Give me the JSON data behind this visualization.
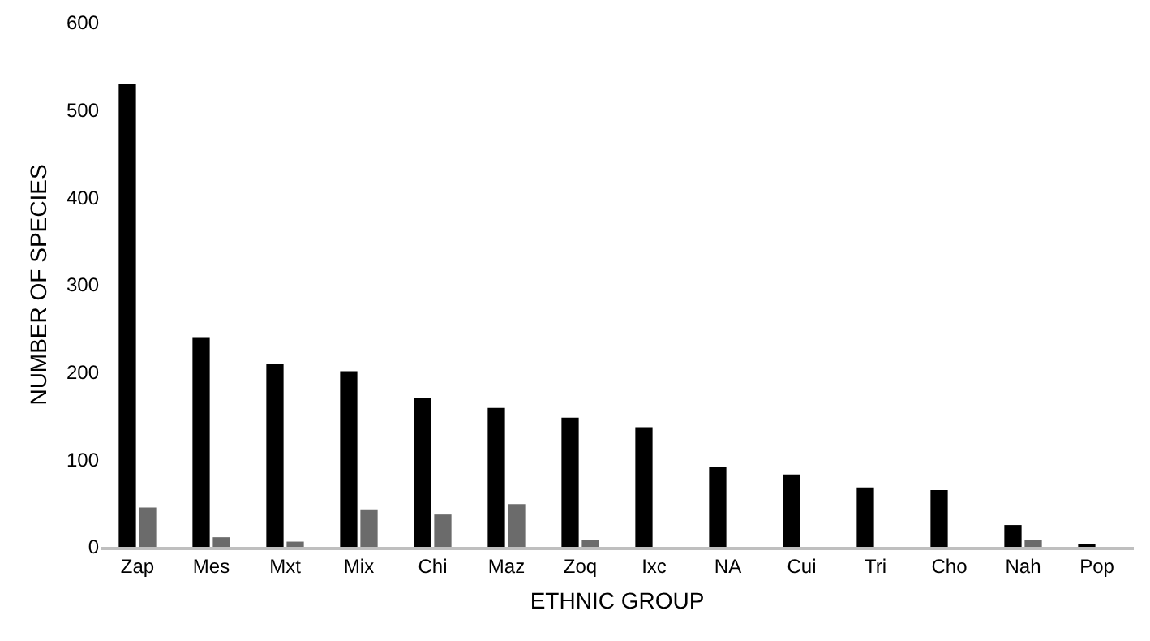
{
  "chart_data": {
    "type": "bar",
    "xlabel": "ETHNIC GROUP",
    "ylabel": "NUMBER OF SPECIES",
    "categories": [
      "Zap",
      "Mes",
      "Mxt",
      "Mix",
      "Chi",
      "Maz",
      "Zoq",
      "Ixc",
      "NA",
      "Cui",
      "Tri",
      "Cho",
      "Nah",
      "Pop"
    ],
    "series": [
      {
        "color": "#000000",
        "values": [
          530,
          240,
          210,
          201,
          170,
          159,
          148,
          137,
          91,
          83,
          68,
          65,
          25,
          2
        ]
      },
      {
        "color": "#6b6b6b",
        "values": [
          45,
          11,
          6,
          43,
          37,
          49,
          8,
          null,
          null,
          null,
          null,
          null,
          8,
          null
        ]
      }
    ],
    "ylim": [
      0,
      600
    ],
    "yticks": [
      0,
      100,
      200,
      300,
      400,
      500,
      600
    ],
    "grid": false
  }
}
